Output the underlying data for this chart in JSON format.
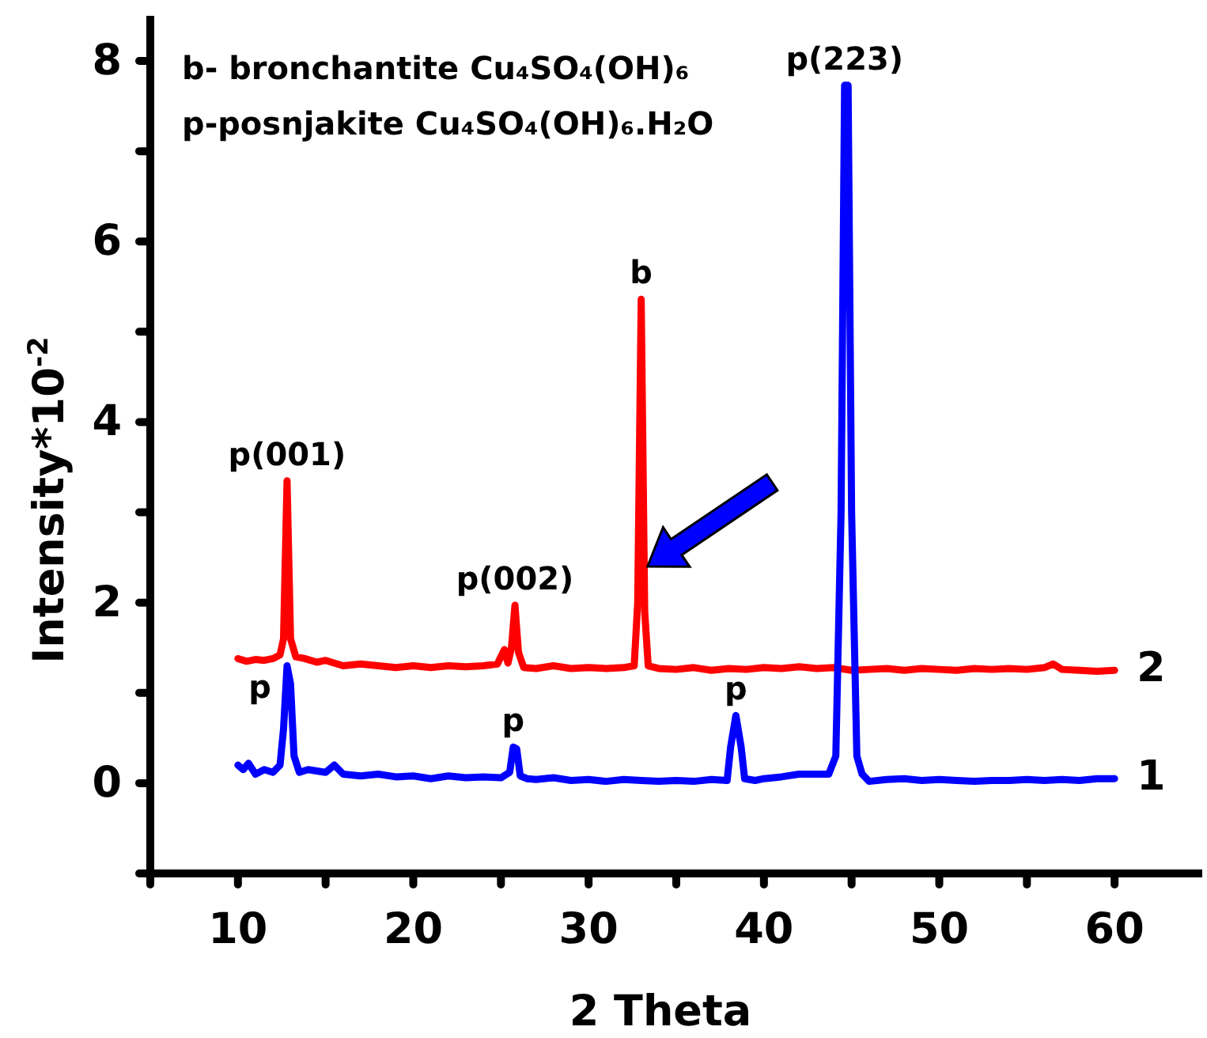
{
  "chart_data": {
    "type": "line",
    "xlabel": "2 Theta",
    "ylabel": "Intensity*10$^{-2}$",
    "xlim": [
      5,
      65
    ],
    "ylim": [
      -1,
      8.5
    ],
    "xticks": [
      {
        "value": 5,
        "label": null
      },
      10,
      {
        "value": 15,
        "label": null
      },
      20,
      {
        "value": 25,
        "label": null
      },
      30,
      {
        "value": 35,
        "label": null
      },
      40,
      {
        "value": 45,
        "label": null
      },
      50,
      {
        "value": 55,
        "label": null
      },
      60
    ],
    "yticks": [
      {
        "value": -1,
        "label": null
      },
      0,
      {
        "value": 1,
        "label": null
      },
      2,
      {
        "value": 3,
        "label": null
      },
      4,
      {
        "value": 5,
        "label": null
      },
      6,
      {
        "value": 7,
        "label": null
      },
      8
    ],
    "grid": false,
    "marker": "none",
    "line_style": "solid",
    "series": [
      {
        "name": "2",
        "color": "#ff0000",
        "x": [
          10,
          10.5,
          11,
          11.5,
          12,
          12.4,
          12.6,
          12.8,
          13.0,
          13.3,
          13.8,
          14.5,
          15,
          16,
          17,
          18,
          19,
          20,
          21,
          22,
          23,
          24,
          24.8,
          25.2,
          25.4,
          25.6,
          25.8,
          26.0,
          26.3,
          27,
          28,
          29,
          30,
          31,
          32,
          32.6,
          32.8,
          33.0,
          33.2,
          33.4,
          34,
          35,
          36,
          37,
          38,
          39,
          40,
          41,
          42,
          43,
          44,
          45,
          46,
          47,
          48,
          49,
          50,
          51,
          52,
          53,
          54,
          55,
          56,
          56.5,
          57,
          58,
          59,
          60
        ],
        "values": [
          1.38,
          1.35,
          1.37,
          1.36,
          1.38,
          1.42,
          1.6,
          3.35,
          1.6,
          1.4,
          1.38,
          1.34,
          1.36,
          1.3,
          1.32,
          1.3,
          1.28,
          1.3,
          1.28,
          1.3,
          1.29,
          1.3,
          1.32,
          1.48,
          1.33,
          1.5,
          1.97,
          1.45,
          1.28,
          1.27,
          1.3,
          1.27,
          1.28,
          1.27,
          1.28,
          1.3,
          2.0,
          5.36,
          1.9,
          1.3,
          1.27,
          1.26,
          1.28,
          1.25,
          1.27,
          1.26,
          1.28,
          1.27,
          1.29,
          1.27,
          1.28,
          1.25,
          1.26,
          1.27,
          1.25,
          1.27,
          1.26,
          1.25,
          1.27,
          1.26,
          1.27,
          1.26,
          1.28,
          1.32,
          1.26,
          1.25,
          1.24,
          1.25
        ]
      },
      {
        "name": "1",
        "color": "#0000ff",
        "x": [
          10,
          10.3,
          10.6,
          11,
          11.5,
          12,
          12.4,
          12.6,
          12.8,
          13.0,
          13.2,
          13.5,
          14,
          15,
          15.5,
          16,
          17,
          18,
          19,
          20,
          21,
          22,
          23,
          24,
          25,
          25.5,
          25.7,
          25.9,
          26.1,
          26.5,
          27,
          28,
          29,
          30,
          31,
          32,
          33,
          34,
          35,
          36,
          37,
          37.9,
          38.1,
          38.4,
          38.7,
          38.9,
          39.5,
          40,
          41,
          42,
          43,
          43.7,
          44.1,
          44.4,
          44.6,
          44.8,
          45.0,
          45.3,
          45.6,
          46,
          47,
          48,
          49,
          50,
          51,
          52,
          53,
          54,
          55,
          56,
          57,
          58,
          59,
          60
        ],
        "values": [
          0.2,
          0.15,
          0.22,
          0.1,
          0.15,
          0.12,
          0.2,
          0.6,
          1.3,
          1.1,
          0.3,
          0.12,
          0.15,
          0.12,
          0.2,
          0.1,
          0.08,
          0.1,
          0.07,
          0.08,
          0.05,
          0.08,
          0.06,
          0.07,
          0.06,
          0.12,
          0.4,
          0.38,
          0.08,
          0.05,
          0.04,
          0.06,
          0.03,
          0.04,
          0.02,
          0.04,
          0.03,
          0.02,
          0.03,
          0.02,
          0.04,
          0.03,
          0.4,
          0.75,
          0.4,
          0.05,
          0.03,
          0.05,
          0.07,
          0.1,
          0.1,
          0.1,
          0.3,
          3.0,
          7.73,
          7.73,
          3.0,
          0.3,
          0.1,
          0.02,
          0.04,
          0.05,
          0.03,
          0.04,
          0.03,
          0.02,
          0.03,
          0.03,
          0.04,
          0.03,
          0.04,
          0.03,
          0.05,
          0.05
        ]
      }
    ],
    "annotations": [
      "b- bronchantite Cu₄SO₄(OH)₆",
      "p-posnjakite  Cu₄SO₄(OH)₆.H₂O",
      {
        "text": "p(001)",
        "x": 12.8,
        "y": 3.35
      },
      {
        "text": "p",
        "x": 12.8,
        "y": 1.3
      },
      {
        "text": "p(002)",
        "x": 25.8,
        "y": 1.97
      },
      {
        "text": "b",
        "x": 33.0,
        "y": 5.36
      },
      {
        "text": "p",
        "x": 25.7,
        "y": 0.4
      },
      {
        "text": "p",
        "x": 38.4,
        "y": 0.75
      },
      {
        "text": "p(223)",
        "x": 44.6,
        "y": 7.73
      }
    ]
  }
}
